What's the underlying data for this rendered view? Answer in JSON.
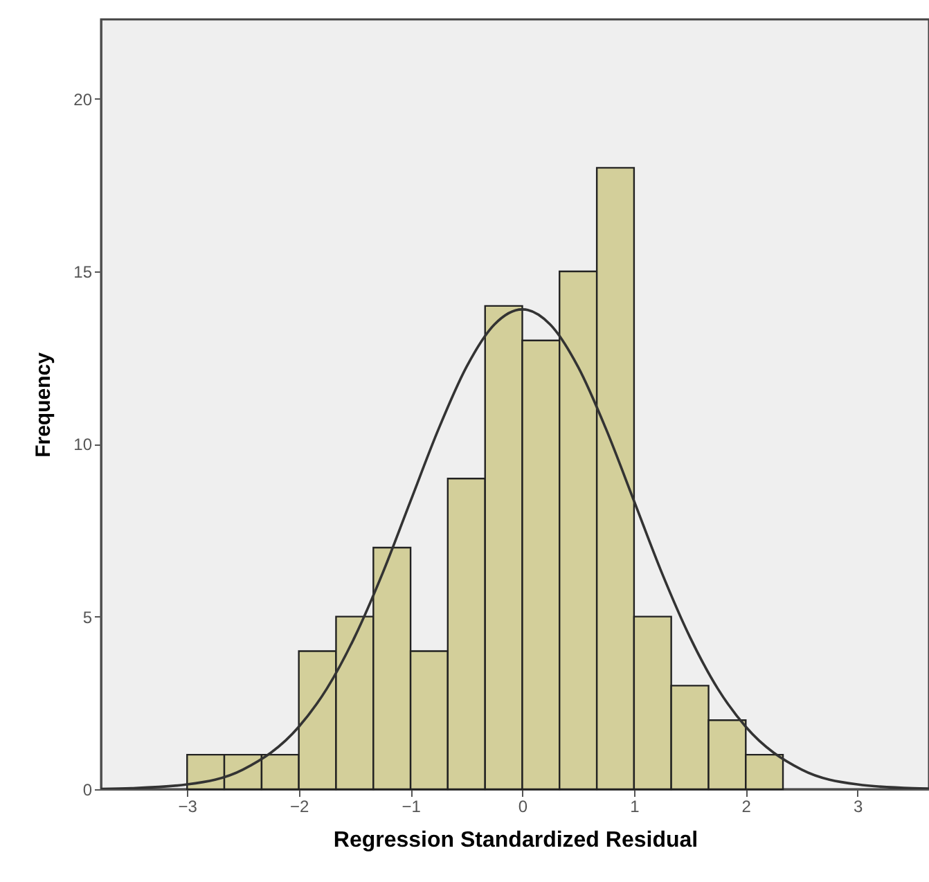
{
  "chart_data": {
    "type": "histogram",
    "xlabel": "Regression Standardized Residual",
    "ylabel": "Frequency",
    "xlim": [
      -3.77,
      3.64
    ],
    "ylim": [
      0,
      22.3
    ],
    "xticks": [
      -3,
      -2,
      -1,
      0,
      1,
      2,
      3
    ],
    "yticks": [
      0,
      5,
      10,
      15,
      20
    ],
    "grid": false,
    "series": [
      {
        "color": "#d3cf9a",
        "bins": [
          -3,
          -2.667,
          -2.333,
          -2,
          -1.667,
          -1.333,
          -1,
          -0.667,
          -0.333,
          0,
          0.333,
          0.667,
          1,
          1.333,
          1.667,
          2,
          2.333
        ],
        "values": [
          1,
          1,
          1,
          4,
          5,
          7,
          4,
          9,
          14,
          13,
          15,
          18,
          5,
          3,
          2,
          1
        ]
      },
      {
        "type": "line",
        "color": "#333333",
        "x": [
          -3.77,
          -3.5,
          -3,
          -2.5,
          -2,
          -1.75,
          -1.5,
          -1.25,
          -1,
          -0.75,
          -0.5,
          -0.25,
          0,
          0.25,
          0.5,
          0.75,
          1,
          1.25,
          1.5,
          1.75,
          2,
          2.5,
          3,
          3.5,
          3.64
        ],
        "values": [
          0.01,
          0.03,
          0.14,
          0.57,
          1.81,
          2.91,
          4.41,
          6.26,
          8.35,
          10.43,
          12.23,
          13.46,
          13.9,
          13.46,
          12.23,
          10.43,
          8.35,
          6.26,
          4.41,
          2.91,
          1.81,
          0.57,
          0.14,
          0.03,
          0.02
        ]
      }
    ]
  }
}
